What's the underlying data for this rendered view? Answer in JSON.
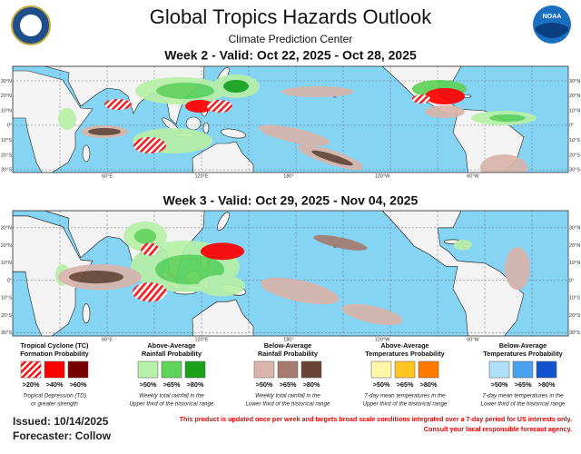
{
  "header": {
    "title": "Global Tropics Hazards Outlook",
    "subtitle": "Climate Prediction Center",
    "logo": "NOAA"
  },
  "panels": [
    {
      "title": "Week 2 - Valid: Oct 22, 2025 - Oct 28, 2025"
    },
    {
      "title": "Week 3 - Valid: Oct 29, 2025 - Nov 04, 2025"
    }
  ],
  "map_axes": {
    "lat_labels": [
      "30°N",
      "20°N",
      "10°N",
      "0°",
      "10°S",
      "20°S",
      "30°S"
    ],
    "lon_labels": [
      "60°E",
      "120°E",
      "180°",
      "120°W",
      "60°W"
    ]
  },
  "legend": [
    {
      "title": [
        "Tropical Cyclone (TC)",
        "Formation Probability"
      ],
      "labels": [
        ">20%",
        ">40%",
        ">60%"
      ],
      "note": [
        "Tropical Depression (TD)",
        "or greater strength"
      ],
      "colors": [
        "hatch",
        "#ff0000",
        "#7a0000"
      ]
    },
    {
      "title": [
        "Above-Average",
        "Rainfall Probability"
      ],
      "labels": [
        ">50%",
        ">65%",
        ">80%"
      ],
      "note": [
        "Weekly total rainfall in the",
        "Upper third of the historical range"
      ],
      "colors": [
        "#b7f0a8",
        "#5fd35a",
        "#1aa31a"
      ]
    },
    {
      "title": [
        "Below-Average",
        "Rainfall Probability"
      ],
      "labels": [
        ">50%",
        ">65%",
        ">80%"
      ],
      "note": [
        "Weekly total rainfall in the",
        "Lower third of the historical range"
      ],
      "colors": [
        "#d9b5ac",
        "#a57b6f",
        "#6a4535"
      ]
    },
    {
      "title": [
        "Above-Average",
        "Temperatures Probability"
      ],
      "labels": [
        ">50%",
        ">65%",
        ">80%"
      ],
      "note": [
        "7-day mean temperatures in the",
        "Upper third of the historical range"
      ],
      "colors": [
        "#fff6a8",
        "#ffc623",
        "#ff7b00"
      ]
    },
    {
      "title": [
        "Below-Average",
        "Temperatures Probability"
      ],
      "labels": [
        ">50%",
        ">65%",
        ">80%"
      ],
      "note": [
        "7-day mean temperatures in the",
        "Lower third of the historical range"
      ],
      "colors": [
        "#aee1f8",
        "#4aa1ef",
        "#1353d0"
      ]
    }
  ],
  "footer": {
    "issued": "Issued: 10/14/2025",
    "forecaster": "Forecaster: Collow",
    "disclaimer": [
      "This product is updated once per week and targets broad scale conditions integrated over a 7-day period for US interests only.",
      "Consult your local responsible forecast agency."
    ]
  }
}
